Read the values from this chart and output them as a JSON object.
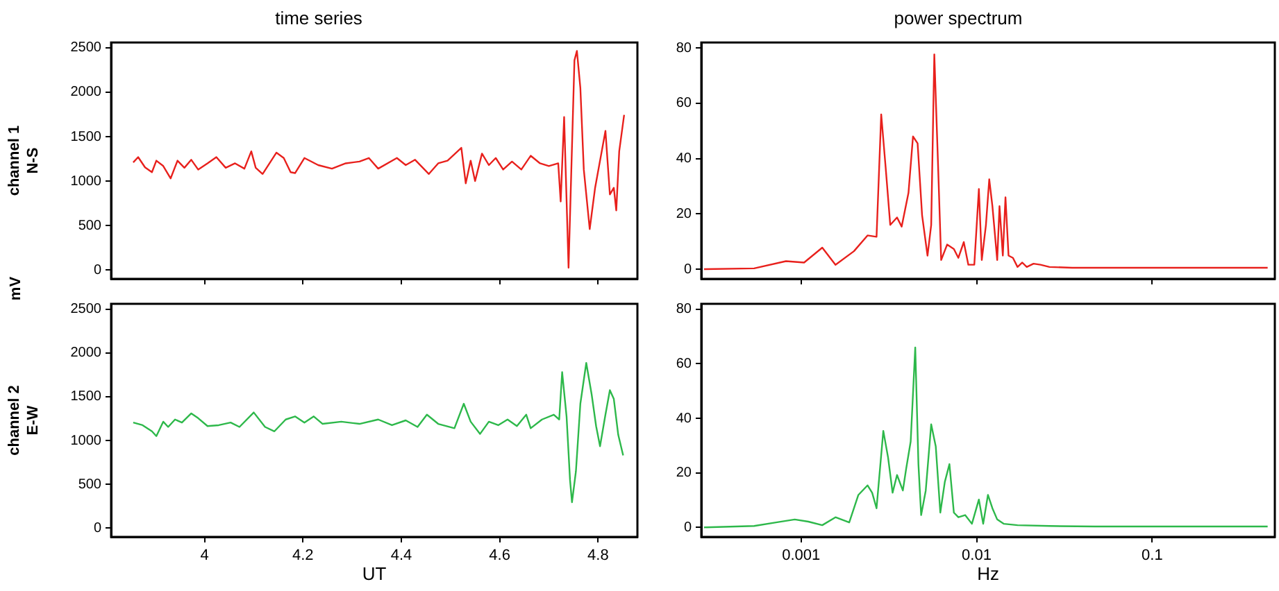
{
  "chart_data": [
    {
      "type": "line",
      "title": "time series",
      "ylabel": "channel 1\nN-S",
      "annotations": [
        "mV"
      ],
      "xlim": [
        3.81,
        4.88
      ],
      "xticks": [
        4,
        4.2,
        4.4,
        4.6,
        4.8
      ],
      "ylim": [
        -100,
        2560
      ],
      "yticks": [
        0,
        500,
        1000,
        1500,
        2000,
        2500
      ],
      "tick_labels": "y",
      "grid": false,
      "legend": false,
      "series": [
        {
          "color": "#e8201c",
          "x": [
            3.855,
            3.865,
            3.879,
            3.893,
            3.902,
            3.916,
            3.931,
            3.945,
            3.959,
            3.973,
            3.987,
            4.006,
            4.024,
            4.043,
            4.062,
            4.081,
            4.095,
            4.104,
            4.118,
            4.146,
            4.161,
            4.175,
            4.184,
            4.203,
            4.231,
            4.259,
            4.287,
            4.315,
            4.334,
            4.353,
            4.391,
            4.409,
            4.428,
            4.456,
            4.475,
            4.494,
            4.522,
            4.531,
            4.541,
            4.55,
            4.564,
            4.578,
            4.592,
            4.607,
            4.625,
            4.644,
            4.663,
            4.682,
            4.7,
            4.719,
            4.724,
            4.731,
            4.74,
            4.752,
            4.757,
            4.764,
            4.771,
            4.783,
            4.794,
            4.815,
            4.824,
            4.832,
            4.837,
            4.843,
            4.853
          ],
          "values": [
            1210,
            1270,
            1155,
            1100,
            1230,
            1170,
            1030,
            1230,
            1150,
            1240,
            1130,
            1200,
            1270,
            1150,
            1200,
            1140,
            1335,
            1150,
            1080,
            1320,
            1260,
            1100,
            1090,
            1260,
            1180,
            1140,
            1200,
            1220,
            1260,
            1140,
            1260,
            1180,
            1240,
            1080,
            1200,
            1230,
            1375,
            975,
            1230,
            1000,
            1310,
            1180,
            1260,
            1130,
            1220,
            1130,
            1285,
            1200,
            1170,
            1200,
            770,
            1720,
            25,
            2360,
            2465,
            2050,
            1130,
            460,
            925,
            1565,
            850,
            925,
            670,
            1335,
            1745
          ]
        }
      ]
    },
    {
      "type": "line",
      "title": "power spectrum",
      "log": "x",
      "xlim": [
        0.00027,
        0.5
      ],
      "xticks": [
        0.001,
        0.01,
        0.1
      ],
      "ylim": [
        -3.5,
        82
      ],
      "yticks": [
        0,
        20,
        40,
        60,
        80
      ],
      "tick_labels": "y",
      "grid": false,
      "legend": false,
      "series": [
        {
          "color": "#e8201c",
          "x": [
            0.00028,
            0.00054,
            0.00082,
            0.00104,
            0.00132,
            0.00157,
            0.002,
            0.00239,
            0.00269,
            0.00286,
            0.00303,
            0.00322,
            0.00352,
            0.00374,
            0.00409,
            0.00434,
            0.00461,
            0.00489,
            0.00525,
            0.00551,
            0.00574,
            0.00602,
            0.00628,
            0.00679,
            0.00742,
            0.00787,
            0.00845,
            0.00897,
            0.0097,
            0.0103,
            0.0107,
            0.0113,
            0.0118,
            0.0123,
            0.0131,
            0.0135,
            0.0141,
            0.0146,
            0.0152,
            0.0161,
            0.0171,
            0.0182,
            0.0193,
            0.0211,
            0.0231,
            0.026,
            0.035,
            0.0857,
            0.455
          ],
          "values": [
            0,
            0.3,
            2.9,
            2.4,
            7.8,
            1.6,
            6.5,
            12.2,
            11.7,
            56,
            37,
            16,
            18.7,
            15.4,
            27.6,
            48,
            45.5,
            19.5,
            4.9,
            16,
            77.7,
            39,
            3.3,
            8.9,
            7.3,
            4.1,
            9.8,
            1.6,
            1.6,
            29,
            3.3,
            16,
            32.5,
            22.8,
            3.3,
            22.8,
            4.9,
            26,
            4.9,
            4.1,
            0.8,
            2.4,
            0.8,
            2,
            1.6,
            0.8,
            0.5,
            0.5,
            0.5
          ]
        }
      ]
    },
    {
      "type": "line",
      "ylabel": "channel 2\nE-W",
      "xlabel": "UT",
      "xlim": [
        3.81,
        4.88
      ],
      "xticks": [
        4,
        4.2,
        4.4,
        4.6,
        4.8
      ],
      "ylim": [
        -100,
        2560
      ],
      "yticks": [
        0,
        500,
        1000,
        1500,
        2000,
        2500
      ],
      "grid": false,
      "legend": false,
      "series": [
        {
          "color": "#2db84a",
          "x": [
            3.855,
            3.874,
            3.893,
            3.902,
            3.916,
            3.926,
            3.94,
            3.954,
            3.973,
            3.987,
            4.006,
            4.029,
            4.053,
            4.071,
            4.1,
            4.123,
            4.142,
            4.165,
            4.184,
            4.203,
            4.222,
            4.24,
            4.278,
            4.315,
            4.353,
            4.381,
            4.409,
            4.433,
            4.452,
            4.475,
            4.508,
            4.527,
            4.541,
            4.56,
            4.578,
            4.597,
            4.616,
            4.635,
            4.654,
            4.663,
            4.686,
            4.71,
            4.721,
            4.727,
            4.736,
            4.743,
            4.747,
            4.755,
            4.764,
            4.776,
            4.787,
            4.796,
            4.804,
            4.815,
            4.824,
            4.832,
            4.841,
            4.851
          ],
          "values": [
            1205,
            1175,
            1105,
            1050,
            1215,
            1155,
            1240,
            1205,
            1310,
            1255,
            1165,
            1175,
            1205,
            1155,
            1320,
            1155,
            1105,
            1240,
            1275,
            1205,
            1275,
            1190,
            1215,
            1190,
            1240,
            1175,
            1230,
            1155,
            1295,
            1190,
            1140,
            1420,
            1215,
            1075,
            1215,
            1175,
            1240,
            1165,
            1295,
            1140,
            1240,
            1295,
            1240,
            1780,
            1270,
            550,
            295,
            650,
            1420,
            1885,
            1525,
            1165,
            935,
            1295,
            1575,
            1475,
            1065,
            830
          ]
        }
      ]
    },
    {
      "type": "line",
      "xlabel": "Hz",
      "log": "x",
      "xlim": [
        0.00027,
        0.5
      ],
      "xticks": [
        0.001,
        0.01,
        0.1
      ],
      "ylim": [
        -3.5,
        82
      ],
      "yticks": [
        0,
        20,
        40,
        60,
        80
      ],
      "grid": false,
      "legend": false,
      "series": [
        {
          "color": "#2db84a",
          "x": [
            0.00028,
            0.00054,
            0.00072,
            0.00092,
            0.0011,
            0.00132,
            0.00157,
            0.00188,
            0.00212,
            0.00239,
            0.00254,
            0.00269,
            0.00294,
            0.00313,
            0.00332,
            0.00352,
            0.0038,
            0.00397,
            0.00421,
            0.00447,
            0.00466,
            0.00483,
            0.00513,
            0.00551,
            0.00585,
            0.00621,
            0.00659,
            0.007,
            0.00742,
            0.00787,
            0.0086,
            0.0094,
            0.0103,
            0.0109,
            0.0116,
            0.0123,
            0.0131,
            0.0143,
            0.0171,
            0.026,
            0.0472,
            0.455
          ],
          "values": [
            0,
            0.5,
            1.8,
            2.9,
            2.1,
            0.8,
            3.7,
            1.8,
            11.9,
            15.4,
            12.7,
            7,
            35.4,
            25.6,
            12.7,
            19.2,
            13.5,
            21.6,
            31.5,
            66,
            23.2,
            4.5,
            13.5,
            37.8,
            29.7,
            5.4,
            16.7,
            23.2,
            5.4,
            3.7,
            4.5,
            1.3,
            10.2,
            1.3,
            11.9,
            7,
            2.9,
            1.3,
            0.8,
            0.5,
            0.3,
            0.3
          ]
        }
      ]
    }
  ]
}
